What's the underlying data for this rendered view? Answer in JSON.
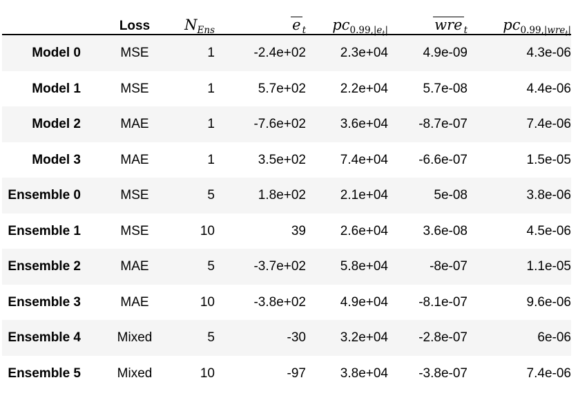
{
  "chart_data": {
    "type": "table",
    "columns": [
      "",
      "Loss",
      "N_Ens",
      "mean(e_t)",
      "pc_{0.99,|e_t|}",
      "mean(wre_t)",
      "pc_{0.99,|wre_t|}"
    ],
    "rows": [
      [
        "Model 0",
        "MSE",
        "1",
        "-2.4e+02",
        "2.3e+04",
        "4.9e-09",
        "4.3e-06"
      ],
      [
        "Model 1",
        "MSE",
        "1",
        "5.7e+02",
        "2.2e+04",
        "5.7e-08",
        "4.4e-06"
      ],
      [
        "Model 2",
        "MAE",
        "1",
        "-7.6e+02",
        "3.6e+04",
        "-8.7e-07",
        "7.4e-06"
      ],
      [
        "Model 3",
        "MAE",
        "1",
        "3.5e+02",
        "7.4e+04",
        "-6.6e-07",
        "1.5e-05"
      ],
      [
        "Ensemble 0",
        "MSE",
        "5",
        "1.8e+02",
        "2.1e+04",
        "5e-08",
        "3.8e-06"
      ],
      [
        "Ensemble 1",
        "MSE",
        "10",
        "39",
        "2.6e+04",
        "3.6e-08",
        "4.5e-06"
      ],
      [
        "Ensemble 2",
        "MAE",
        "5",
        "-3.7e+02",
        "5.8e+04",
        "-8e-07",
        "1.1e-05"
      ],
      [
        "Ensemble 3",
        "MAE",
        "10",
        "-3.8e+02",
        "4.9e+04",
        "-8.1e-07",
        "9.6e-06"
      ],
      [
        "Ensemble 4",
        "Mixed",
        "5",
        "-30",
        "3.2e+04",
        "-2.8e-07",
        "6e-06"
      ],
      [
        "Ensemble 5",
        "Mixed",
        "10",
        "-97",
        "3.8e+04",
        "-3.8e-07",
        "7.4e-06"
      ]
    ],
    "title": "",
    "legend": null,
    "grid": "row-stripes"
  },
  "header_math": {
    "n_ens": {
      "base": "N",
      "sub": "Ens"
    },
    "e_mean": {
      "base": "e",
      "sub": "t"
    },
    "pc_e": {
      "base": "pc",
      "sub_pre": "0.99,|",
      "sub_var": "e",
      "sub_sub": "t",
      "sub_post": "|"
    },
    "wre_mean": {
      "base": "wre",
      "sub": "t"
    },
    "pc_wre": {
      "base": "pc",
      "sub_pre": "0.99,|",
      "sub_var": "wre",
      "sub_sub": "t",
      "sub_post": "|"
    }
  },
  "colors": {
    "stripe": "#f5f5f5",
    "header_line": "#000000",
    "text": "#000000",
    "background": "#ffffff"
  }
}
